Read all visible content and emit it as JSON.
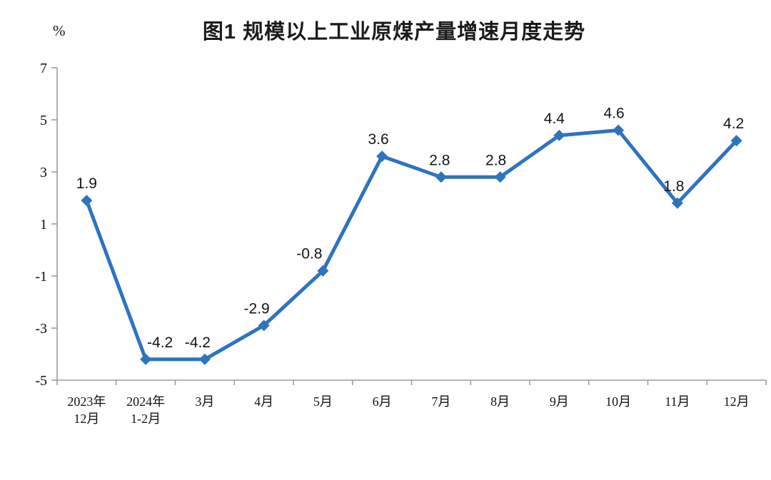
{
  "header": {
    "title": "图1  规模以上工业原煤产量增速月度走势",
    "unit_label": "%"
  },
  "chart_data": {
    "type": "line",
    "title": "图1  规模以上工业原煤产量增速月度走势",
    "unit": "%",
    "categories": [
      "2023年\n12月",
      "2024年\n1-2月",
      "3月",
      "4月",
      "5月",
      "6月",
      "7月",
      "8月",
      "9月",
      "10月",
      "11月",
      "12月"
    ],
    "series": [
      {
        "name": "规模以上工业原煤产量增速",
        "values": [
          1.9,
          -4.2,
          -4.2,
          -2.9,
          -0.8,
          3.6,
          2.8,
          2.8,
          4.4,
          4.6,
          1.8,
          4.2
        ],
        "data_labels": [
          "1.9",
          "-4.2",
          "-4.2",
          "-2.9",
          "-0.8",
          "3.6",
          "2.8",
          "2.8",
          "4.4",
          "4.6",
          "1.8",
          "4.2"
        ]
      }
    ],
    "ylim": [
      -5,
      7
    ],
    "yticks": [
      7,
      5,
      3,
      1,
      -1,
      -3,
      -5
    ],
    "ytick_step": 2,
    "grid": false,
    "legend_position": "none",
    "marker": "diamond",
    "colors": {
      "line": "#2e73be",
      "marker": "#2e73be",
      "axis": "#9e9e9e",
      "text": "#111111",
      "background": "#ffffff"
    }
  }
}
